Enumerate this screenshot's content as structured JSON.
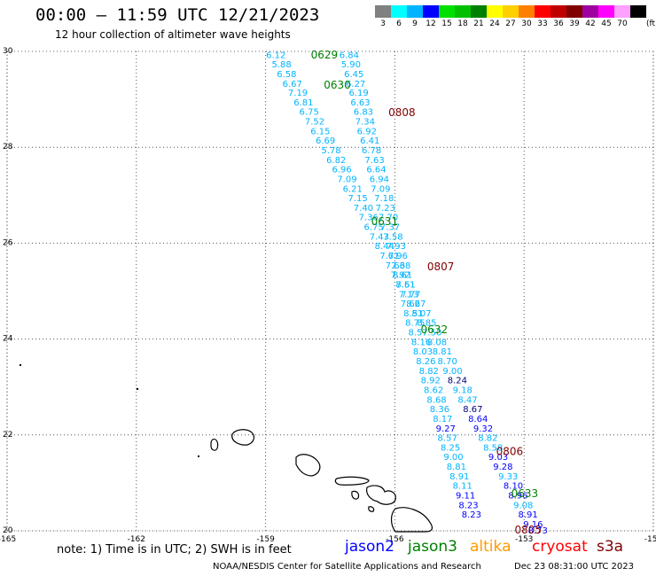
{
  "header": {
    "title": "00:00 – 11:59 UTC 12/21/2023",
    "subtitle": "12 hour collection of altimeter wave heights"
  },
  "legend": {
    "unit": "(ft)",
    "bins": [
      {
        "label": "3",
        "color": "#808080"
      },
      {
        "label": "6",
        "color": "#00ffff"
      },
      {
        "label": "9",
        "color": "#00b4ff"
      },
      {
        "label": "12",
        "color": "#0000ff"
      },
      {
        "label": "15",
        "color": "#00e000"
      },
      {
        "label": "18",
        "color": "#00c000"
      },
      {
        "label": "21",
        "color": "#008000"
      },
      {
        "label": "24",
        "color": "#ffff00"
      },
      {
        "label": "27",
        "color": "#ffd000"
      },
      {
        "label": "30",
        "color": "#ff8000"
      },
      {
        "label": "33",
        "color": "#ff0000"
      },
      {
        "label": "36",
        "color": "#c00000"
      },
      {
        "label": "39",
        "color": "#800000"
      },
      {
        "label": "42",
        "color": "#a000a0"
      },
      {
        "label": "45",
        "color": "#ff00ff"
      },
      {
        "label": "70",
        "color": "#ffa0ff"
      },
      {
        "label": "",
        "color": "#000000"
      }
    ]
  },
  "map": {
    "lon_range": [
      -165,
      -150
    ],
    "lat_range": [
      20,
      30
    ],
    "x_ticks": [
      "-165",
      "-162",
      "-159",
      "-156",
      "-153",
      "-150"
    ],
    "y_ticks": [
      "20",
      "22",
      "24",
      "26",
      "28",
      "30"
    ],
    "land_color": "#000000"
  },
  "tracks": [
    {
      "colors": [
        "#00b4ff",
        "#00b4ff",
        "#00b4ff",
        "#00b4ff",
        "#00b4ff",
        "#00b4ff",
        "#00b4ff",
        "#00b4ff",
        "#00b4ff",
        "#00b4ff",
        "#00b4ff",
        "#00b4ff",
        "#00b4ff",
        "#00b4ff",
        "#00b4ff",
        "#00b4ff",
        "#00b4ff",
        "#00b4ff",
        "#00b4ff",
        "#00b4ff",
        "#00b4ff",
        "#00b4ff",
        "#00b4ff",
        "#00b4ff",
        "#00b4ff",
        "#00b4ff",
        "#00b4ff",
        "#00b4ff",
        "#00b4ff",
        "#00b4ff",
        "#00b4ff",
        "#00b4ff",
        "#00b4ff",
        "#00b4ff",
        "#000080",
        "#00b4ff",
        "#00b4ff",
        "#000080",
        "#0000ff",
        "#0000ff",
        "#00b4ff",
        "#00b4ff",
        "#0000ff",
        "#0000ff",
        "#00b4ff",
        "#0000ff",
        "#0000ff",
        "#00b4ff",
        "#0000ff",
        "#0000ff",
        "#0000ff"
      ],
      "points": [
        {
          "lon": -158.76,
          "lat": 29.92,
          "swh": "6.12"
        },
        {
          "lon": -158.63,
          "lat": 29.72,
          "swh": "5.88"
        },
        {
          "lon": -158.51,
          "lat": 29.52,
          "swh": "6.58"
        },
        {
          "lon": -158.38,
          "lat": 29.32,
          "swh": "6.67"
        },
        {
          "lon": -158.25,
          "lat": 29.13,
          "swh": "7.19"
        },
        {
          "lon": -158.12,
          "lat": 28.93,
          "swh": "6.81"
        },
        {
          "lon": -157.99,
          "lat": 28.73,
          "swh": "6.75"
        },
        {
          "lon": -157.86,
          "lat": 28.53,
          "swh": "7.52"
        },
        {
          "lon": -157.73,
          "lat": 28.33,
          "swh": "6.15"
        },
        {
          "lon": -157.61,
          "lat": 28.13,
          "swh": "6.69"
        },
        {
          "lon": -157.48,
          "lat": 27.93,
          "swh": "5.78"
        },
        {
          "lon": -157.36,
          "lat": 27.73,
          "swh": "6.82"
        },
        {
          "lon": -157.23,
          "lat": 27.53,
          "swh": "6.96"
        },
        {
          "lon": -157.11,
          "lat": 27.33,
          "swh": "7.09"
        },
        {
          "lon": -156.98,
          "lat": 27.13,
          "swh": "6.21"
        },
        {
          "lon": -156.86,
          "lat": 26.93,
          "swh": "7.15"
        },
        {
          "lon": -156.73,
          "lat": 26.73,
          "swh": "7.40"
        },
        {
          "lon": -156.61,
          "lat": 26.53,
          "swh": "7.36"
        },
        {
          "lon": -156.49,
          "lat": 26.33,
          "swh": "6.75"
        },
        {
          "lon": -156.36,
          "lat": 26.13,
          "swh": "7.43"
        },
        {
          "lon": -156.24,
          "lat": 25.93,
          "swh": "8.44"
        },
        {
          "lon": -156.12,
          "lat": 25.73,
          "swh": "7.71"
        },
        {
          "lon": -155.99,
          "lat": 25.53,
          "swh": "7.66"
        },
        {
          "lon": -155.87,
          "lat": 25.33,
          "swh": "7.92"
        },
        {
          "lon": -155.75,
          "lat": 25.13,
          "swh": "8.51"
        },
        {
          "lon": -155.63,
          "lat": 24.93,
          "swh": "7.77"
        },
        {
          "lon": -155.51,
          "lat": 24.73,
          "swh": "8.27"
        },
        {
          "lon": -155.38,
          "lat": 24.53,
          "swh": "8.07"
        },
        {
          "lon": -155.26,
          "lat": 24.33,
          "swh": "8.85"
        },
        {
          "lon": -155.14,
          "lat": 24.13,
          "swh": "7.50"
        },
        {
          "lon": -155.02,
          "lat": 23.93,
          "swh": "8.08"
        },
        {
          "lon": -154.9,
          "lat": 23.73,
          "swh": "8.81"
        },
        {
          "lon": -154.78,
          "lat": 23.53,
          "swh": "8.70"
        },
        {
          "lon": -154.66,
          "lat": 23.33,
          "swh": "9.00"
        },
        {
          "lon": -154.55,
          "lat": 23.13,
          "swh": "8.24"
        },
        {
          "lon": -154.43,
          "lat": 22.93,
          "swh": "9.18"
        },
        {
          "lon": -154.31,
          "lat": 22.73,
          "swh": "8.47"
        },
        {
          "lon": -154.19,
          "lat": 22.53,
          "swh": "8.67"
        },
        {
          "lon": -154.07,
          "lat": 22.33,
          "swh": "8.64"
        },
        {
          "lon": -153.95,
          "lat": 22.13,
          "swh": "9.32"
        },
        {
          "lon": -153.84,
          "lat": 21.93,
          "swh": "8.82"
        },
        {
          "lon": -153.72,
          "lat": 21.73,
          "swh": "8.58"
        },
        {
          "lon": -153.6,
          "lat": 21.53,
          "swh": "9.03"
        },
        {
          "lon": -153.49,
          "lat": 21.33,
          "swh": "9.28"
        },
        {
          "lon": -153.37,
          "lat": 21.13,
          "swh": "9.33"
        },
        {
          "lon": -153.25,
          "lat": 20.93,
          "swh": "8.10"
        },
        {
          "lon": -153.14,
          "lat": 20.73,
          "swh": "8.96"
        },
        {
          "lon": -153.02,
          "lat": 20.53,
          "swh": "9.08"
        },
        {
          "lon": -152.91,
          "lat": 20.33,
          "swh": "8.91"
        },
        {
          "lon": -152.79,
          "lat": 20.13,
          "swh": "9.16"
        },
        {
          "lon": -152.68,
          "lat": 20.0,
          "swh": "8.73"
        }
      ]
    },
    {
      "colors": [
        "#00b4ff",
        "#00b4ff",
        "#00b4ff",
        "#00b4ff",
        "#00b4ff",
        "#00b4ff",
        "#00b4ff",
        "#00b4ff",
        "#00b4ff",
        "#00b4ff",
        "#00b4ff",
        "#00b4ff",
        "#00b4ff",
        "#00b4ff",
        "#00b4ff",
        "#00b4ff",
        "#00b4ff",
        "#00b4ff",
        "#00b4ff",
        "#00b4ff",
        "#00b4ff",
        "#00b4ff",
        "#00b4ff",
        "#00b4ff",
        "#00b4ff",
        "#00b4ff",
        "#00b4ff",
        "#00b4ff",
        "#00b4ff",
        "#00b4ff",
        "#00b4ff",
        "#00b4ff",
        "#00b4ff",
        "#00b4ff",
        "#00b4ff",
        "#00b4ff",
        "#00b4ff",
        "#00b4ff",
        "#00b4ff",
        "#0000ff",
        "#00b4ff",
        "#00b4ff",
        "#00b4ff",
        "#00b4ff",
        "#00b4ff",
        "#00b4ff",
        "#0000ff",
        "#0000ff",
        "#0000ff"
      ],
      "points": [
        {
          "lon": -157.06,
          "lat": 29.92,
          "swh": "6.84"
        },
        {
          "lon": -157.02,
          "lat": 29.72,
          "swh": "5.90"
        },
        {
          "lon": -156.95,
          "lat": 29.52,
          "swh": "6.45"
        },
        {
          "lon": -156.91,
          "lat": 29.32,
          "swh": "6.27"
        },
        {
          "lon": -156.84,
          "lat": 29.13,
          "swh": "6.19"
        },
        {
          "lon": -156.8,
          "lat": 28.93,
          "swh": "6.63"
        },
        {
          "lon": -156.73,
          "lat": 28.73,
          "swh": "6.83"
        },
        {
          "lon": -156.69,
          "lat": 28.53,
          "swh": "7.34"
        },
        {
          "lon": -156.65,
          "lat": 28.33,
          "swh": "6.92"
        },
        {
          "lon": -156.58,
          "lat": 28.13,
          "swh": "6.41"
        },
        {
          "lon": -156.54,
          "lat": 27.93,
          "swh": "6.78"
        },
        {
          "lon": -156.47,
          "lat": 27.73,
          "swh": "7.63"
        },
        {
          "lon": -156.43,
          "lat": 27.53,
          "swh": "6.64"
        },
        {
          "lon": -156.36,
          "lat": 27.33,
          "swh": "6.94"
        },
        {
          "lon": -156.33,
          "lat": 27.13,
          "swh": "7.09"
        },
        {
          "lon": -156.25,
          "lat": 26.93,
          "swh": "7.18"
        },
        {
          "lon": -156.22,
          "lat": 26.73,
          "swh": "7.23"
        },
        {
          "lon": -156.15,
          "lat": 26.53,
          "swh": "7.70"
        },
        {
          "lon": -156.11,
          "lat": 26.33,
          "swh": "7.37"
        },
        {
          "lon": -156.04,
          "lat": 26.13,
          "swh": "7.58"
        },
        {
          "lon": -155.97,
          "lat": 25.93,
          "swh": "7.93"
        },
        {
          "lon": -155.93,
          "lat": 25.73,
          "swh": "6.96"
        },
        {
          "lon": -155.86,
          "lat": 25.53,
          "swh": "7.38"
        },
        {
          "lon": -155.82,
          "lat": 25.33,
          "swh": "8.61"
        },
        {
          "lon": -155.75,
          "lat": 25.13,
          "swh": "7.61"
        },
        {
          "lon": -155.68,
          "lat": 24.93,
          "swh": "7.13"
        },
        {
          "lon": -155.64,
          "lat": 24.73,
          "swh": "7.66"
        },
        {
          "lon": -155.57,
          "lat": 24.53,
          "swh": "8.51"
        },
        {
          "lon": -155.53,
          "lat": 24.33,
          "swh": "8.75"
        },
        {
          "lon": -155.46,
          "lat": 24.13,
          "swh": "8.57"
        },
        {
          "lon": -155.39,
          "lat": 23.93,
          "swh": "8.16"
        },
        {
          "lon": -155.35,
          "lat": 23.73,
          "swh": "8.03"
        },
        {
          "lon": -155.28,
          "lat": 23.53,
          "swh": "8.26"
        },
        {
          "lon": -155.21,
          "lat": 23.33,
          "swh": "8.82"
        },
        {
          "lon": -155.17,
          "lat": 23.13,
          "swh": "8.92"
        },
        {
          "lon": -155.1,
          "lat": 22.93,
          "swh": "8.62"
        },
        {
          "lon": -155.03,
          "lat": 22.73,
          "swh": "8.68"
        },
        {
          "lon": -154.96,
          "lat": 22.53,
          "swh": "8.36"
        },
        {
          "lon": -154.89,
          "lat": 22.33,
          "swh": "8.17"
        },
        {
          "lon": -154.82,
          "lat": 22.13,
          "swh": "9.27"
        },
        {
          "lon": -154.78,
          "lat": 21.93,
          "swh": "8.57"
        },
        {
          "lon": -154.71,
          "lat": 21.73,
          "swh": "8.25"
        },
        {
          "lon": -154.64,
          "lat": 21.53,
          "swh": "9.00"
        },
        {
          "lon": -154.57,
          "lat": 21.33,
          "swh": "8.81"
        },
        {
          "lon": -154.5,
          "lat": 21.13,
          "swh": "8.91"
        },
        {
          "lon": -154.43,
          "lat": 20.93,
          "swh": "8.11"
        },
        {
          "lon": -154.36,
          "lat": 20.73,
          "swh": "9.11"
        },
        {
          "lon": -154.29,
          "lat": 20.53,
          "swh": "8.23"
        },
        {
          "lon": -154.22,
          "lat": 20.33,
          "swh": "8.23"
        }
      ]
    }
  ],
  "time_labels": [
    {
      "text": "0629",
      "lon": -157.95,
      "lat": 29.93,
      "color": "#008000"
    },
    {
      "text": "0630",
      "lon": -157.65,
      "lat": 29.3,
      "color": "#008000"
    },
    {
      "text": "0631",
      "lon": -156.55,
      "lat": 26.45,
      "color": "#008000"
    },
    {
      "text": "0632",
      "lon": -155.4,
      "lat": 24.2,
      "color": "#008000"
    },
    {
      "text": "0633",
      "lon": -153.3,
      "lat": 20.78,
      "color": "#008000"
    },
    {
      "text": "0808",
      "lon": -156.15,
      "lat": 28.72,
      "color": "#800000"
    },
    {
      "text": "0807",
      "lon": -155.25,
      "lat": 25.51,
      "color": "#800000"
    },
    {
      "text": "0806",
      "lon": -153.65,
      "lat": 21.65,
      "color": "#800000"
    },
    {
      "text": "0805",
      "lon": -153.22,
      "lat": 20.02,
      "color": "#800000"
    }
  ],
  "footer": {
    "note": "note:  1) Time is in UTC;  2) SWH is in feet",
    "satellites": [
      {
        "name": "jason2",
        "color": "#0000ff"
      },
      {
        "name": "jason3",
        "color": "#008000"
      },
      {
        "name": "altika",
        "color": "#ff9900"
      },
      {
        "name": "cryosat",
        "color": "#ff0000"
      },
      {
        "name": "s3a",
        "color": "#800000"
      }
    ],
    "credit": "NOAA/NESDIS Center for Satellite Applications and Research",
    "generated": "Dec 23 08:31:00 UTC 2023"
  }
}
